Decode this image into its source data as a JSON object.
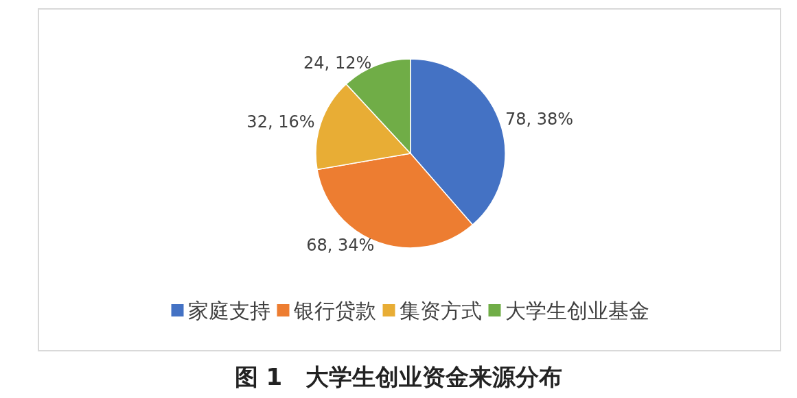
{
  "chart_data": {
    "type": "pie",
    "title": "图 1　大学生创业资金来源分布",
    "categories": [
      "家庭支持",
      "银行贷款",
      "集资方式",
      "大学生创业基金"
    ],
    "values": [
      78,
      68,
      32,
      24
    ],
    "value_labels": [
      "78, 38%",
      "68, 34%",
      "32, 16%",
      "24, 12%"
    ],
    "colors": [
      "#4472c4",
      "#ed7d31",
      "#e8ad35",
      "#70ad47"
    ],
    "legend": "bottom"
  }
}
